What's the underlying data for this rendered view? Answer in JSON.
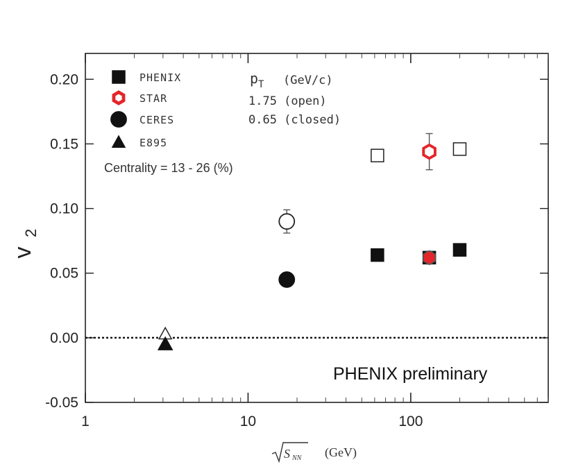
{
  "chart_data": {
    "type": "scatter",
    "title": "",
    "ylabel": "v",
    "ylabel_sub": "2",
    "xlabel": "√S",
    "xlabel_sub": "NN",
    "xlabel_unit": "(GeV)",
    "xscale": "log",
    "xlim": [
      1,
      700
    ],
    "ylim": [
      -0.05,
      0.22
    ],
    "x_ticks": [
      1,
      10,
      100
    ],
    "x_tick_labels": [
      "1",
      "10",
      "100"
    ],
    "y_ticks": [
      -0.05,
      0,
      0.05,
      0.1,
      0.15,
      0.2
    ],
    "y_tick_labels": [
      "-0.05",
      "0.00",
      "0.05",
      "0.10",
      "0.15",
      "0.20"
    ],
    "reference_line": {
      "y": 0,
      "style": "dotted"
    },
    "legend": [
      {
        "label": "PHENIX",
        "marker": "square",
        "color": "#111111"
      },
      {
        "label": "STAR",
        "marker": "hexagon",
        "color": "#e3262b"
      },
      {
        "label": "CERES",
        "marker": "circle",
        "color": "#111111"
      },
      {
        "label": "E895",
        "marker": "triangle",
        "color": "#111111"
      }
    ],
    "pt_header": "p",
    "pt_header_sub": "T",
    "pt_header_unit": "(GeV/c)",
    "pt_open": "1.75 (open)",
    "pt_closed": "0.65 (closed)",
    "centrality_label": "Centrality = 13 - 26 (%)",
    "annotation": "PHENIX preliminary",
    "series": [
      {
        "name": "PHENIX",
        "marker": "square",
        "fill": "open",
        "points": [
          {
            "x": 62.4,
            "y": 0.141
          },
          {
            "x": 200,
            "y": 0.146
          }
        ]
      },
      {
        "name": "PHENIX",
        "marker": "square",
        "fill": "closed",
        "points": [
          {
            "x": 62.4,
            "y": 0.064
          },
          {
            "x": 130,
            "y": 0.062
          },
          {
            "x": 200,
            "y": 0.068
          }
        ]
      },
      {
        "name": "STAR",
        "marker": "hexagon",
        "fill": "open",
        "points": [
          {
            "x": 130,
            "y": 0.144,
            "err": 0.014
          }
        ]
      },
      {
        "name": "STAR",
        "marker": "hexagon",
        "fill": "closed",
        "points": [
          {
            "x": 130,
            "y": 0.062,
            "err": 0.005
          }
        ]
      },
      {
        "name": "CERES",
        "marker": "circle",
        "fill": "open",
        "points": [
          {
            "x": 17.3,
            "y": 0.09,
            "err": 0.009
          }
        ]
      },
      {
        "name": "CERES",
        "marker": "circle",
        "fill": "closed",
        "points": [
          {
            "x": 17.3,
            "y": 0.045
          }
        ]
      },
      {
        "name": "E895",
        "marker": "triangle",
        "fill": "open",
        "points": [
          {
            "x": 3.1,
            "y": 0.003
          }
        ]
      },
      {
        "name": "E895",
        "marker": "triangle",
        "fill": "closed",
        "points": [
          {
            "x": 3.1,
            "y": -0.005
          }
        ]
      }
    ]
  }
}
